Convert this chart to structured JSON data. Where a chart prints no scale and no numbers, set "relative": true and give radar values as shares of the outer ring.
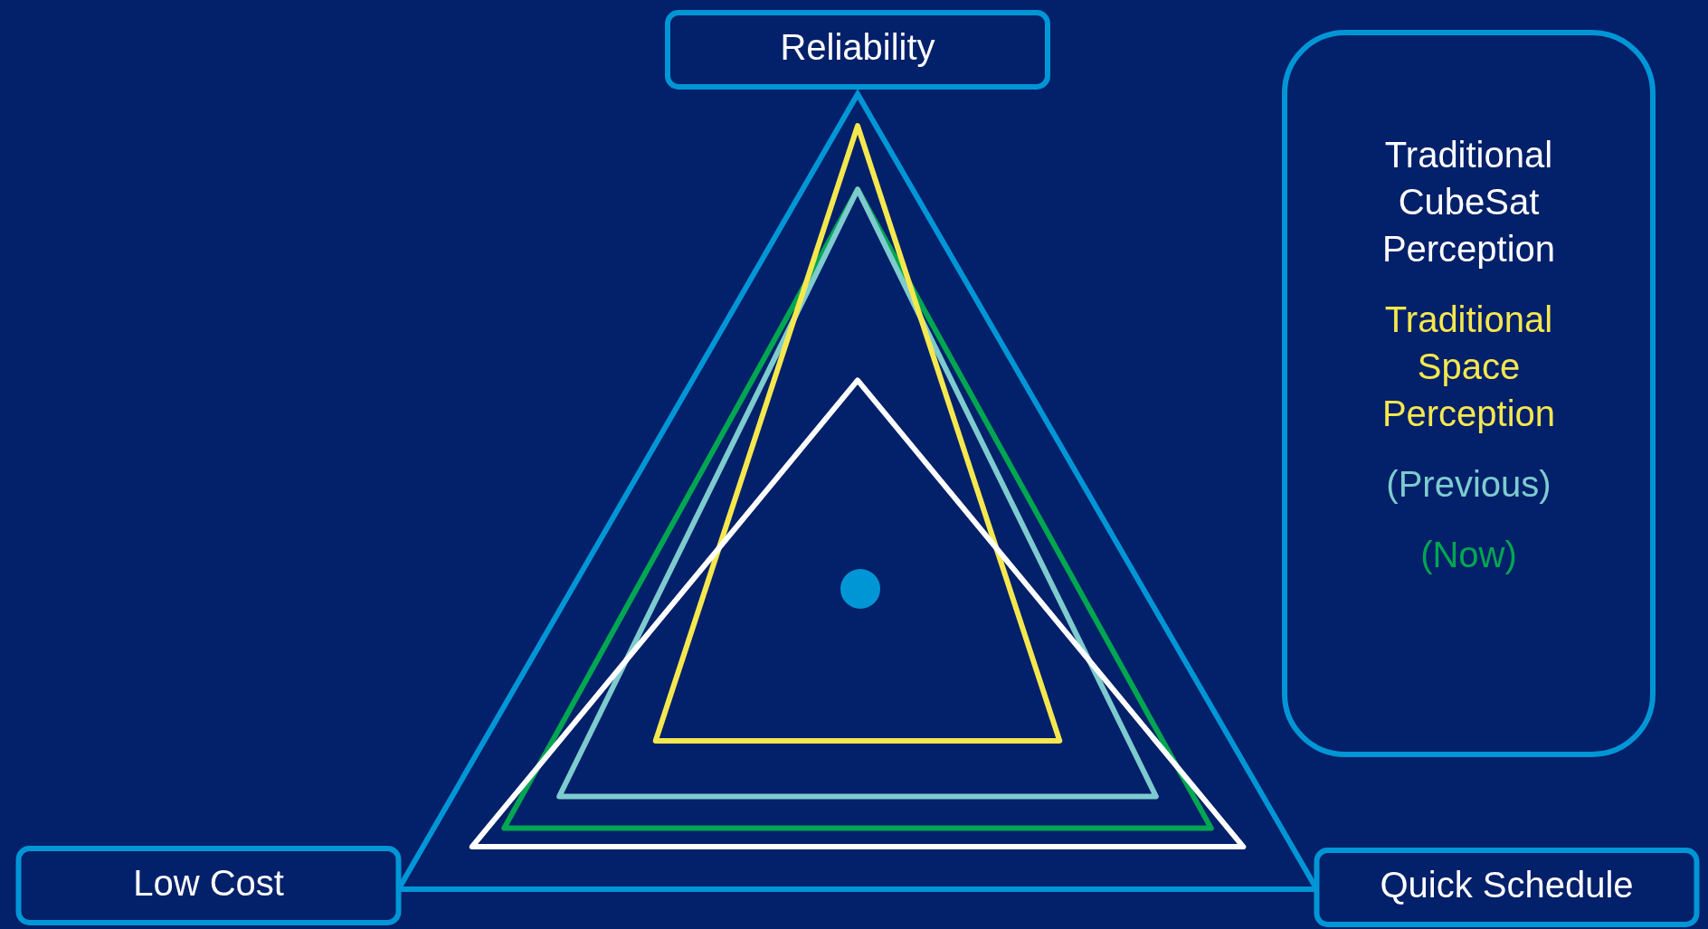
{
  "chart_data": {
    "type": "radar",
    "relative": true,
    "categories": [
      "Reliability",
      "Quick Schedule",
      "Low Cost"
    ],
    "series": [
      {
        "name": "Traditional CubeSat Perception",
        "color": "#ffffff",
        "values": [
          0.46,
          0.84,
          0.84
        ]
      },
      {
        "name": "Traditional Space Perception",
        "color": "#f5e84e",
        "values": [
          0.94,
          0.44,
          0.44
        ]
      },
      {
        "name": "(Previous)",
        "color": "#7ecbcf",
        "values": [
          0.82,
          0.65,
          0.65
        ]
      },
      {
        "name": "(Now)",
        "color": "#00a651",
        "values": [
          0.82,
          0.77,
          0.77
        ]
      }
    ],
    "grid": true,
    "legend": "right",
    "marker": "none"
  }
}
